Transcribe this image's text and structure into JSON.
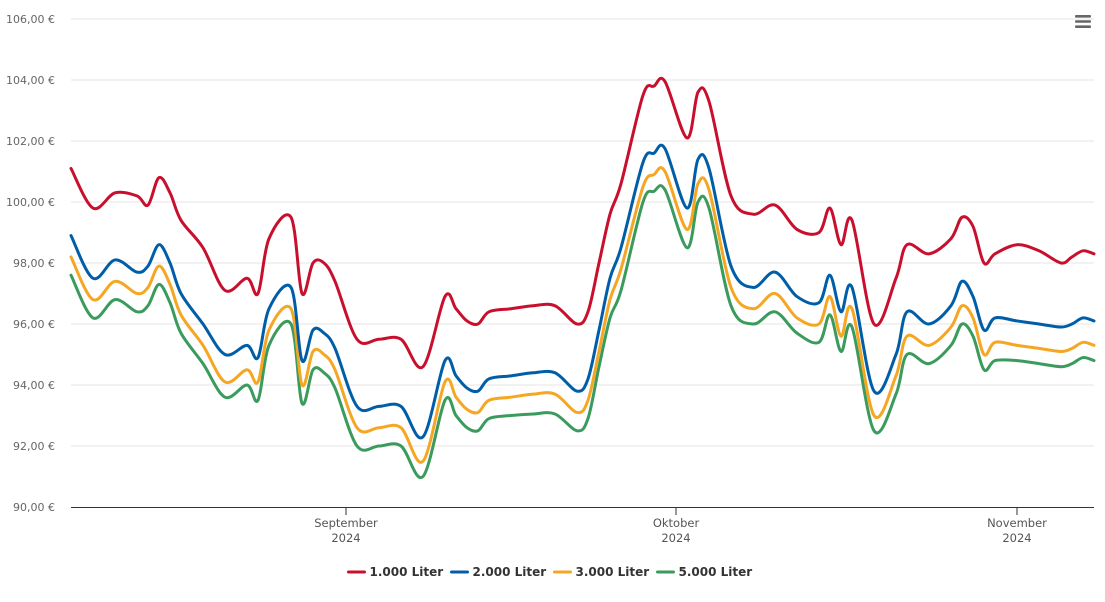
{
  "menu": {
    "icon": "hamburger-menu-icon"
  },
  "chart_data": {
    "type": "line",
    "title": "",
    "xlabel": "",
    "ylabel": "",
    "ylim": [
      90,
      106
    ],
    "y_ticks": [
      90,
      92,
      94,
      96,
      98,
      100,
      102,
      104,
      106
    ],
    "y_tick_labels": [
      "90,00 €",
      "92,00 €",
      "94,00 €",
      "96,00 €",
      "98,00 €",
      "100,00 €",
      "102,00 €",
      "104,00 €",
      "106,00 €"
    ],
    "xlim": [
      "2024-08-07",
      "2024-11-08"
    ],
    "x_ticks": [
      {
        "date": "2024-09-01",
        "month": "September",
        "year": "2024"
      },
      {
        "date": "2024-10-01",
        "month": "Oktober",
        "year": "2024"
      },
      {
        "date": "2024-11-01",
        "month": "November",
        "year": "2024"
      }
    ],
    "grid": "horizontal",
    "legend_position": "bottom-center",
    "x": [
      "2024-08-07",
      "2024-08-09",
      "2024-08-11",
      "2024-08-13",
      "2024-08-14",
      "2024-08-15",
      "2024-08-16",
      "2024-08-17",
      "2024-08-19",
      "2024-08-21",
      "2024-08-23",
      "2024-08-24",
      "2024-08-25",
      "2024-08-27",
      "2024-08-28",
      "2024-08-29",
      "2024-08-30",
      "2024-08-31",
      "2024-09-02",
      "2024-09-04",
      "2024-09-06",
      "2024-09-08",
      "2024-09-10",
      "2024-09-11",
      "2024-09-12",
      "2024-09-13",
      "2024-09-14",
      "2024-09-16",
      "2024-09-18",
      "2024-09-20",
      "2024-09-22",
      "2024-09-23",
      "2024-09-24",
      "2024-09-25",
      "2024-09-26",
      "2024-09-28",
      "2024-09-29",
      "2024-09-30",
      "2024-10-02",
      "2024-10-03",
      "2024-10-04",
      "2024-10-06",
      "2024-10-08",
      "2024-10-10",
      "2024-10-12",
      "2024-10-14",
      "2024-10-15",
      "2024-10-16",
      "2024-10-17",
      "2024-10-19",
      "2024-10-21",
      "2024-10-22",
      "2024-10-24",
      "2024-10-26",
      "2024-10-27",
      "2024-10-28",
      "2024-10-29",
      "2024-10-30",
      "2024-11-01",
      "2024-11-03",
      "2024-11-05",
      "2024-11-06",
      "2024-11-07",
      "2024-11-08"
    ],
    "series": [
      {
        "name": "1.000 Liter",
        "color": "#c8102e",
        "values": [
          101.1,
          99.8,
          100.3,
          100.2,
          99.9,
          100.8,
          100.3,
          99.4,
          98.5,
          97.1,
          97.5,
          97.0,
          98.8,
          99.5,
          97.0,
          98.0,
          98.0,
          97.4,
          95.5,
          95.5,
          95.5,
          94.6,
          96.9,
          96.5,
          96.1,
          96.0,
          96.4,
          96.5,
          96.6,
          96.6,
          96.0,
          96.4,
          98.0,
          99.6,
          100.6,
          103.5,
          103.8,
          103.95,
          102.1,
          103.6,
          103.3,
          100.2,
          99.6,
          99.9,
          99.1,
          99.0,
          99.8,
          98.6,
          99.4,
          96.0,
          97.5,
          98.6,
          98.3,
          98.8,
          99.5,
          99.2,
          98.0,
          98.3,
          98.6,
          98.4,
          98.0,
          98.2,
          98.4,
          98.3
        ]
      },
      {
        "name": "2.000 Liter",
        "color": "#005ea8",
        "values": [
          98.9,
          97.5,
          98.1,
          97.7,
          97.9,
          98.6,
          98.0,
          97.0,
          96.0,
          95.0,
          95.3,
          94.9,
          96.5,
          97.2,
          94.8,
          95.8,
          95.7,
          95.2,
          93.3,
          93.3,
          93.3,
          92.3,
          94.8,
          94.3,
          93.9,
          93.8,
          94.2,
          94.3,
          94.4,
          94.4,
          93.8,
          94.2,
          95.8,
          97.5,
          98.5,
          101.3,
          101.6,
          101.75,
          99.8,
          101.4,
          101.1,
          97.9,
          97.2,
          97.7,
          96.9,
          96.7,
          97.6,
          96.4,
          97.2,
          93.8,
          95.0,
          96.4,
          96.0,
          96.6,
          97.4,
          96.9,
          95.8,
          96.2,
          96.1,
          96.0,
          95.9,
          96.0,
          96.2,
          96.1
        ]
      },
      {
        "name": "3.000 Liter",
        "color": "#f5a623",
        "values": [
          98.2,
          96.8,
          97.4,
          97.0,
          97.2,
          97.9,
          97.3,
          96.3,
          95.3,
          94.1,
          94.5,
          94.1,
          95.8,
          96.5,
          94.0,
          95.1,
          95.0,
          94.5,
          92.6,
          92.6,
          92.6,
          91.5,
          94.1,
          93.6,
          93.2,
          93.1,
          93.5,
          93.6,
          93.7,
          93.7,
          93.1,
          93.5,
          95.1,
          96.8,
          97.8,
          100.5,
          100.9,
          101.0,
          99.1,
          100.6,
          100.4,
          97.2,
          96.5,
          97.0,
          96.2,
          96.0,
          96.9,
          95.6,
          96.5,
          93.0,
          94.3,
          95.6,
          95.3,
          95.9,
          96.6,
          96.2,
          95.0,
          95.4,
          95.3,
          95.2,
          95.1,
          95.2,
          95.4,
          95.3
        ]
      },
      {
        "name": "5.000 Liter",
        "color": "#3a9b5c",
        "values": [
          97.6,
          96.2,
          96.8,
          96.4,
          96.6,
          97.3,
          96.7,
          95.7,
          94.7,
          93.6,
          94.0,
          93.5,
          95.3,
          96.0,
          93.4,
          94.5,
          94.4,
          93.9,
          92.0,
          92.0,
          92.0,
          91.0,
          93.5,
          93.0,
          92.6,
          92.5,
          92.9,
          93.0,
          93.05,
          93.05,
          92.5,
          92.9,
          94.6,
          96.2,
          97.1,
          100.0,
          100.35,
          100.4,
          98.5,
          100.0,
          99.8,
          96.6,
          96.0,
          96.4,
          95.7,
          95.4,
          96.3,
          95.1,
          95.9,
          92.5,
          93.7,
          95.0,
          94.7,
          95.3,
          96.0,
          95.6,
          94.5,
          94.8,
          94.8,
          94.7,
          94.6,
          94.7,
          94.9,
          94.8
        ]
      }
    ]
  }
}
